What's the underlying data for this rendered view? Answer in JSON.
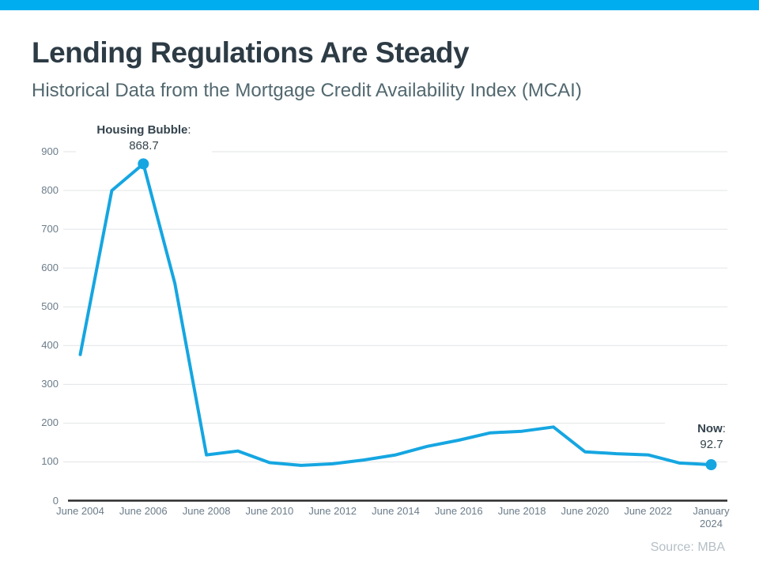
{
  "header": {
    "title": "Lending Regulations Are Steady",
    "subtitle": "Historical Data from the Mortgage Credit Availability Index (MCAI)"
  },
  "colors": {
    "accent_bar": "#00AEEF",
    "line": "#15A6E1",
    "axis": "#2B2B2B",
    "grid": "#E2E4E6"
  },
  "chart_data": {
    "type": "line",
    "title": "Lending Regulations Are Steady",
    "subtitle": "Historical Data from the Mortgage Credit Availability Index (MCAI)",
    "x_tick_labels": [
      "June 2004",
      "June 2006",
      "June 2008",
      "June 2010",
      "June 2012",
      "June 2014",
      "June 2016",
      "June 2018",
      "June 2020",
      "June 2022",
      "January 2024"
    ],
    "y_ticks": [
      0,
      100,
      200,
      300,
      400,
      500,
      600,
      700,
      800,
      900
    ],
    "ylim": [
      0,
      900
    ],
    "grid": "horizontal-only",
    "legend": "none",
    "series": [
      {
        "name": "Mortgage Credit Availability Index",
        "points_per_tick_interval": 2,
        "values": [
          377,
          800,
          868.7,
          560,
          118,
          128,
          98,
          91,
          95,
          105,
          118,
          140,
          156,
          175,
          179,
          190,
          126,
          121,
          118,
          97,
          92.7
        ]
      }
    ],
    "annotations": {
      "peak": {
        "label": "Housing Bubble",
        "colon": ":",
        "value": "868.7",
        "point_index": 2
      },
      "now": {
        "label": "Now",
        "colon": ":",
        "value": "92.7",
        "point_index": 20
      }
    },
    "source": "Source: MBA"
  }
}
